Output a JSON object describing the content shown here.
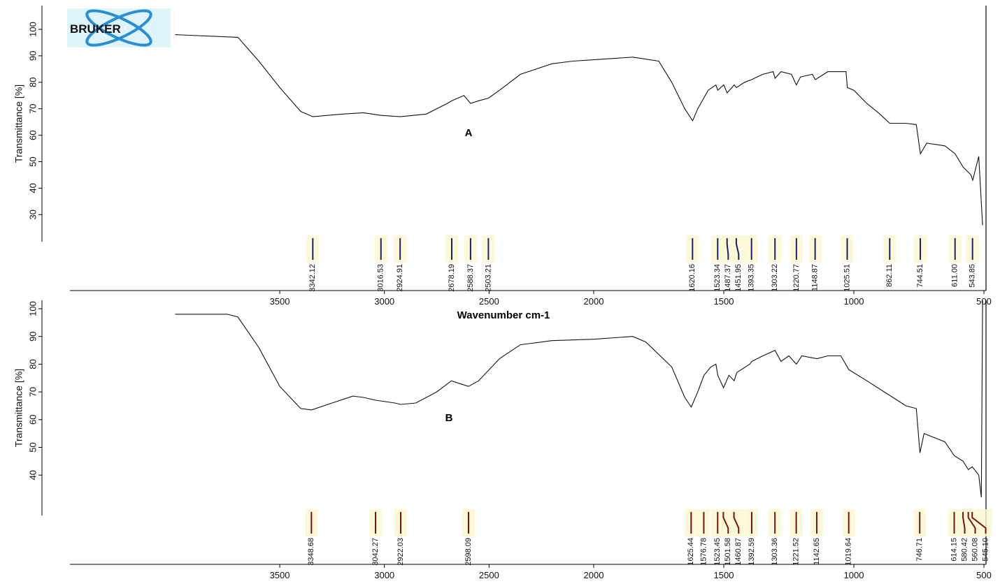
{
  "chart_data": [
    {
      "type": "line",
      "panel_label": "A",
      "title": "",
      "logo_text": "BRUKER",
      "xlabel": "Wavenumber cm-1",
      "ylabel": "Transmittance [%]",
      "xlim": [
        4000,
        500
      ],
      "ylim": [
        20,
        108
      ],
      "xticks": [
        3500,
        3000,
        2500,
        2000,
        1500,
        1000,
        500
      ],
      "yticks": [
        30,
        40,
        50,
        60,
        70,
        80,
        90,
        100
      ],
      "grid": false,
      "x": [
        4000,
        3700,
        3600,
        3500,
        3400,
        3342,
        3200,
        3100,
        3016,
        2924,
        2800,
        2700,
        2678,
        2620,
        2588,
        2550,
        2503,
        2450,
        2350,
        2200,
        2100,
        2000,
        1850,
        1750,
        1700,
        1650,
        1620,
        1600,
        1560,
        1530,
        1523,
        1500,
        1487,
        1460,
        1451,
        1420,
        1393,
        1350,
        1310,
        1303,
        1280,
        1240,
        1221,
        1205,
        1160,
        1148,
        1100,
        1030,
        1025,
        1000,
        950,
        900,
        862,
        800,
        760,
        744,
        720,
        650,
        611,
        580,
        550,
        543,
        520,
        505
      ],
      "y": [
        98,
        97,
        88,
        78,
        69,
        67,
        68,
        68.5,
        67.5,
        67,
        68,
        72,
        73,
        75,
        72,
        73,
        74,
        77,
        83,
        87,
        88,
        88.5,
        89.5,
        88,
        80,
        70,
        65.5,
        70,
        77,
        79,
        77,
        79,
        76,
        79,
        78,
        80,
        81,
        83,
        84,
        81.5,
        84,
        83,
        79,
        82,
        83,
        81,
        84,
        84,
        78,
        77,
        72,
        68,
        64.5,
        64.5,
        64,
        53,
        57,
        56,
        53,
        48,
        45,
        43,
        52,
        26
      ],
      "peaks": [
        "3342.12",
        "3016.53",
        "2924.91",
        "2678.19",
        "2588.37",
        "2503.21",
        "1620.16",
        "1523.34",
        "1487.37",
        "1451.95",
        "1393.35",
        "1303.22",
        "1220.77",
        "1148.87",
        "1025.51",
        "862.11",
        "744.51",
        "611.00",
        "543.85"
      ],
      "marker_color": "#1a1f6e"
    },
    {
      "type": "line",
      "panel_label": "B",
      "title": "",
      "xlabel": "",
      "ylabel": "Transmittance [%]",
      "xlim": [
        4000,
        500
      ],
      "ylim": [
        32,
        104
      ],
      "xticks": [
        3500,
        3000,
        2500,
        2000,
        1500,
        1000,
        500
      ],
      "yticks": [
        40,
        50,
        60,
        70,
        80,
        90,
        100
      ],
      "grid": false,
      "x": [
        4000,
        3750,
        3700,
        3600,
        3500,
        3400,
        3348,
        3250,
        3150,
        3100,
        3042,
        2950,
        2922,
        2850,
        2750,
        2680,
        2640,
        2598,
        2550,
        2450,
        2350,
        2200,
        2000,
        1850,
        1800,
        1700,
        1650,
        1625,
        1600,
        1576,
        1550,
        1530,
        1523,
        1501,
        1480,
        1460,
        1450,
        1400,
        1392,
        1350,
        1303,
        1280,
        1250,
        1221,
        1200,
        1142,
        1100,
        1050,
        1019,
        950,
        850,
        800,
        760,
        746,
        730,
        650,
        614,
        580,
        560,
        545,
        520,
        510,
        505
      ],
      "y": [
        98,
        98,
        97,
        86,
        72,
        64,
        63.5,
        66,
        68.5,
        68,
        67,
        66,
        65.5,
        66,
        70,
        74,
        73,
        72,
        74,
        82,
        87,
        88.5,
        89,
        90,
        88,
        79,
        68,
        64.5,
        70,
        76,
        79,
        80,
        76,
        71.5,
        76,
        74,
        77,
        80,
        81,
        83,
        85,
        81,
        83,
        80,
        83,
        82,
        83,
        83,
        78,
        74,
        68,
        65,
        64,
        48,
        55,
        52,
        47,
        45,
        42,
        43,
        40,
        32,
        103
      ],
      "peaks": [
        "3348.68",
        "3042.27",
        "2922.03",
        "2598.09",
        "1625.44",
        "1576.78",
        "1523.45",
        "1501.58",
        "1460.87",
        "1392.59",
        "1303.36",
        "1221.52",
        "1142.65",
        "1019.64",
        "746.71",
        "614.15",
        "580.42",
        "560.08",
        "545.10"
      ],
      "marker_color": "#7a1010"
    }
  ]
}
